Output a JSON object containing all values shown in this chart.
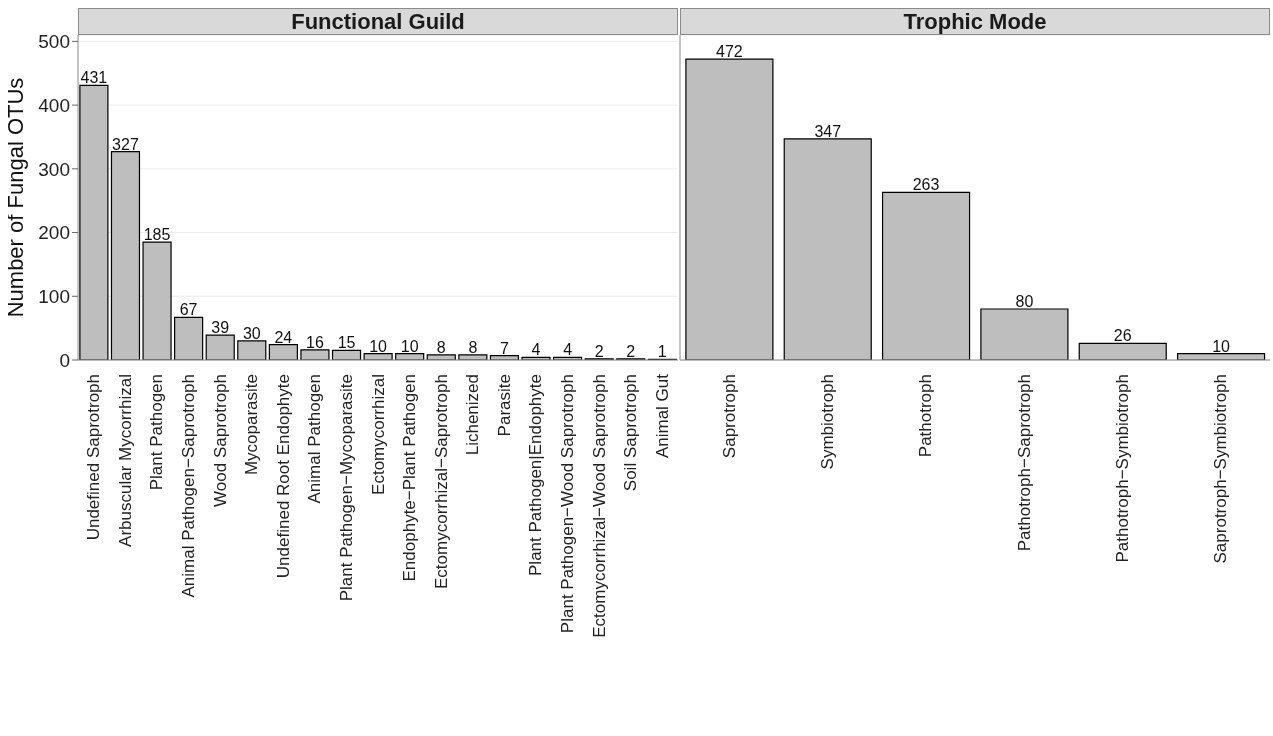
{
  "chart_data": [
    {
      "type": "bar",
      "title": "Functional Guild",
      "ylabel": "Number of Fungal OTUs",
      "categories": [
        "Undefined Saprotroph",
        "Arbuscular Mycorrhizal",
        "Plant Pathogen",
        "Animal Pathogen−Saprotroph",
        "Wood Saprotroph",
        "Mycoparasite",
        "Undefined Root Endophyte",
        "Animal Pathogen",
        "Plant Pathogen−Mycoparasite",
        "Ectomycorrhizal",
        "Endophyte−Plant Pathogen",
        "Ectomycorrhizal−Saprotroph",
        "Lichenized",
        "Parasite",
        "Plant Pathogen|Endophyte",
        "Plant Pathogen−Wood Saprotroph",
        "Ectomycorrhizal−Wood Saprotroph",
        "Soil Saprotroph",
        "Animal Gut"
      ],
      "values": [
        431,
        327,
        185,
        67,
        39,
        30,
        24,
        16,
        15,
        10,
        10,
        8,
        8,
        7,
        4,
        4,
        2,
        2,
        1
      ],
      "color": "#bebebe",
      "ylim": [
        0,
        510
      ],
      "yticks": [
        0,
        100,
        200,
        300,
        400,
        500
      ],
      "grid": "y",
      "data_labels": true
    },
    {
      "type": "bar",
      "title": "Trophic Mode",
      "categories": [
        "Saprotroph",
        "Symbiotroph",
        "Pathotroph",
        "Pathotroph−Saprotroph",
        "Pathotroph−Symbiotroph",
        "Saprotroph−Symbiotroph"
      ],
      "values": [
        472,
        347,
        263,
        80,
        26,
        10
      ],
      "color": "#bebebe",
      "ylim": [
        0,
        510
      ],
      "yticks": [
        0,
        100,
        200,
        300,
        400,
        500
      ],
      "grid": "y",
      "data_labels": true,
      "tick_labels": "x"
    }
  ]
}
